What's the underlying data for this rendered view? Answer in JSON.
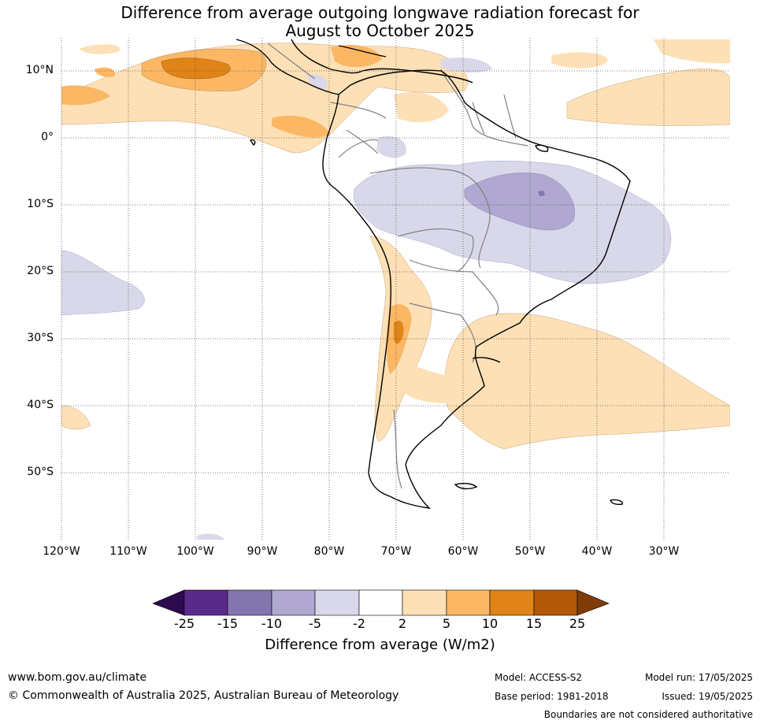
{
  "title_line1": "Difference from average outgoing longwave radiation forecast for",
  "title_line2": "August to October 2025",
  "lat_labels": [
    "10°N",
    "0°",
    "10°S",
    "20°S",
    "30°S",
    "40°S",
    "50°S"
  ],
  "lon_labels": [
    "120°W",
    "110°W",
    "100°W",
    "90°W",
    "80°W",
    "70°W",
    "60°W",
    "50°W",
    "40°W",
    "30°W"
  ],
  "colorbar": {
    "ticks": [
      "-25",
      "-15",
      "-10",
      "-5",
      "-2",
      "2",
      "5",
      "10",
      "15",
      "25"
    ],
    "colors": [
      "#2d0a4e",
      "#5a2a8a",
      "#8375ae",
      "#b0a8d1",
      "#d8d8ea",
      "#ffffff",
      "#fde0b6",
      "#fbb763",
      "#e08417",
      "#b35806",
      "#7f3b08"
    ],
    "label": "Difference from average (W/m2)"
  },
  "footer": {
    "website": "www.bom.gov.au/climate",
    "copyright": "© Commonwealth of Australia 2025, Australian Bureau of Meteorology",
    "model": "Model: ACCESS-S2",
    "base_period": "Base period: 1981-2018",
    "model_run": "Model run: 17/05/2025",
    "issued": "Issued: 19/05/2025",
    "disclaimer": "Boundaries are not considered authoritative"
  }
}
